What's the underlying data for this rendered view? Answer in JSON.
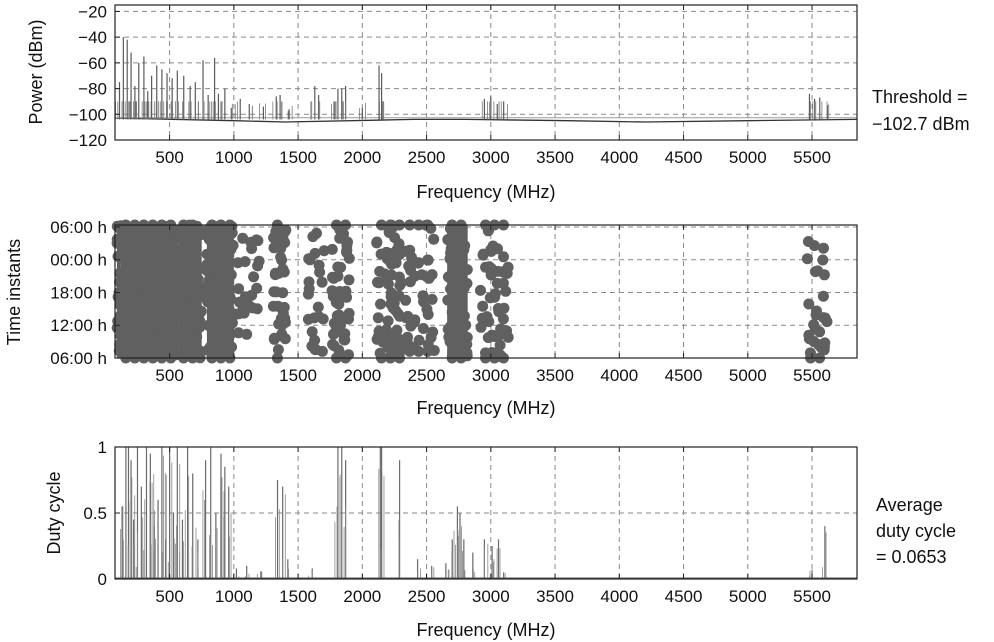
{
  "chart_data": [
    {
      "type": "line",
      "xlabel": "Frequency (MHz)",
      "ylabel": "Power (dBm)",
      "xlim": [
        75,
        5850
      ],
      "ylim": [
        -120,
        -15
      ],
      "xticks": [
        500,
        1000,
        1500,
        2000,
        2500,
        3000,
        3500,
        4000,
        4500,
        5000,
        5500
      ],
      "yticks": [
        -120,
        -100,
        -80,
        -60,
        -40,
        -20
      ],
      "ytick_labels": [
        "−120",
        "−100",
        "−80",
        "−60",
        "−40",
        "−20"
      ],
      "grid": true,
      "annotation": [
        "Threshold =",
        "−102.7 dBm"
      ],
      "threshold": -102.7,
      "noise_floor": [
        [
          75,
          -103
        ],
        [
          1000,
          -105
        ],
        [
          1400,
          -106
        ],
        [
          2400,
          -104
        ],
        [
          2800,
          -104
        ],
        [
          3600,
          -105
        ],
        [
          4200,
          -106
        ],
        [
          5000,
          -105
        ],
        [
          5850,
          -104
        ]
      ],
      "series": [
        {
          "peaks": [
            [
              110,
              -75
            ],
            [
              140,
              -40
            ],
            [
              170,
              -42
            ],
            [
              200,
              -52
            ],
            [
              230,
              -78
            ],
            [
              260,
              -60
            ],
            [
              300,
              -55
            ],
            [
              330,
              -82
            ],
            [
              360,
              -70
            ],
            [
              400,
              -62
            ],
            [
              440,
              -65
            ],
            [
              480,
              -68
            ],
            [
              520,
              -72
            ],
            [
              560,
              -66
            ],
            [
              610,
              -70
            ],
            [
              660,
              -78
            ],
            [
              700,
              -75
            ],
            [
              760,
              -58
            ],
            [
              800,
              -85
            ],
            [
              850,
              -56
            ],
            [
              880,
              -84
            ],
            [
              930,
              -80
            ],
            [
              980,
              -95
            ],
            [
              1050,
              -88
            ],
            [
              1120,
              -92
            ],
            [
              1230,
              -94
            ],
            [
              1330,
              -86
            ],
            [
              1360,
              -85
            ],
            [
              1430,
              -96
            ],
            [
              1630,
              -78
            ],
            [
              1660,
              -85
            ],
            [
              1780,
              -90
            ],
            [
              1810,
              -80
            ],
            [
              1840,
              -80
            ],
            [
              1870,
              -78
            ],
            [
              2000,
              -95
            ],
            [
              2130,
              -62
            ],
            [
              2150,
              -68
            ],
            [
              2950,
              -88
            ],
            [
              3000,
              -86
            ],
            [
              3050,
              -92
            ],
            [
              3100,
              -90
            ],
            [
              5480,
              -84
            ],
            [
              5520,
              -88
            ],
            [
              5560,
              -87
            ],
            [
              5620,
              -93
            ]
          ]
        }
      ]
    },
    {
      "type": "scatter",
      "xlabel": "Frequency (MHz)",
      "ylabel": "Time instants",
      "xlim": [
        75,
        5850
      ],
      "xticks": [
        500,
        1000,
        1500,
        2000,
        2500,
        3000,
        3500,
        4000,
        4500,
        5000,
        5500
      ],
      "ytick_labels": [
        "06:00 h",
        "12:00 h",
        "18:00 h",
        "00:00 h",
        "06:00 h"
      ],
      "grid": true,
      "series": [
        {
          "bands": [
            [
              90,
              120,
              0,
              1,
              0.95
            ],
            [
              120,
              570,
              0,
              1,
              1.0
            ],
            [
              570,
              750,
              0,
              1,
              0.98
            ],
            [
              790,
              1000,
              0,
              1,
              0.9
            ],
            [
              1030,
              1200,
              0.05,
              0.9,
              0.3
            ],
            [
              1300,
              1410,
              0,
              1,
              0.7
            ],
            [
              1580,
              1710,
              0.05,
              0.95,
              0.35
            ],
            [
              1760,
              1900,
              0,
              1,
              0.75
            ],
            [
              2110,
              2310,
              0,
              1,
              0.8
            ],
            [
              2330,
              2560,
              0.05,
              1,
              0.4
            ],
            [
              2660,
              2820,
              0,
              1,
              0.9
            ],
            [
              2920,
              3140,
              0,
              1,
              0.55
            ],
            [
              5450,
              5620,
              0,
              0.95,
              0.35
            ]
          ]
        }
      ]
    },
    {
      "type": "line",
      "xlabel": "Frequency (MHz)",
      "ylabel": "Duty cycle",
      "xlim": [
        75,
        5850
      ],
      "ylim": [
        0,
        1
      ],
      "xticks": [
        500,
        1000,
        1500,
        2000,
        2500,
        3000,
        3500,
        4000,
        4500,
        5000,
        5500
      ],
      "yticks": [
        0,
        0.5,
        1
      ],
      "ytick_labels": [
        "0",
        "0.5",
        "1"
      ],
      "grid": true,
      "annotation": [
        "Average",
        "duty cycle",
        "= 0.0653"
      ],
      "average_duty_cycle": 0.0653,
      "series": [
        {
          "bars": [
            [
              130,
              0.55
            ],
            [
              160,
              1.0
            ],
            [
              180,
              1.0
            ],
            [
              200,
              0.9
            ],
            [
              220,
              0.45
            ],
            [
              250,
              1.0
            ],
            [
              280,
              0.7
            ],
            [
              320,
              1.0
            ],
            [
              350,
              0.95
            ],
            [
              380,
              0.4
            ],
            [
              410,
              0.6
            ],
            [
              440,
              1.0
            ],
            [
              470,
              0.3
            ],
            [
              500,
              1.0
            ],
            [
              530,
              0.5
            ],
            [
              560,
              1.0
            ],
            [
              600,
              0.45
            ],
            [
              640,
              1.0
            ],
            [
              680,
              0.8
            ],
            [
              720,
              0.3
            ],
            [
              780,
              0.9
            ],
            [
              820,
              1.0
            ],
            [
              860,
              0.5
            ],
            [
              900,
              0.95
            ],
            [
              930,
              0.85
            ],
            [
              960,
              0.7
            ],
            [
              1020,
              0.08
            ],
            [
              1100,
              0.1
            ],
            [
              1210,
              0.06
            ],
            [
              1340,
              0.75
            ],
            [
              1380,
              0.7
            ],
            [
              1420,
              0.15
            ],
            [
              1610,
              0.08
            ],
            [
              1810,
              1.0
            ],
            [
              1840,
              1.0
            ],
            [
              1870,
              0.9
            ],
            [
              2140,
              1.0
            ],
            [
              2150,
              1.0
            ],
            [
              2290,
              0.9
            ],
            [
              2430,
              0.15
            ],
            [
              2540,
              0.1
            ],
            [
              2650,
              0.12
            ],
            [
              2700,
              0.3
            ],
            [
              2740,
              0.55
            ],
            [
              2760,
              0.5
            ],
            [
              2790,
              0.3
            ],
            [
              2860,
              0.2
            ],
            [
              2950,
              0.3
            ],
            [
              3010,
              0.25
            ],
            [
              3060,
              0.3
            ],
            [
              3100,
              0.05
            ],
            [
              5500,
              0.07
            ],
            [
              5600,
              0.4
            ]
          ]
        }
      ]
    }
  ]
}
